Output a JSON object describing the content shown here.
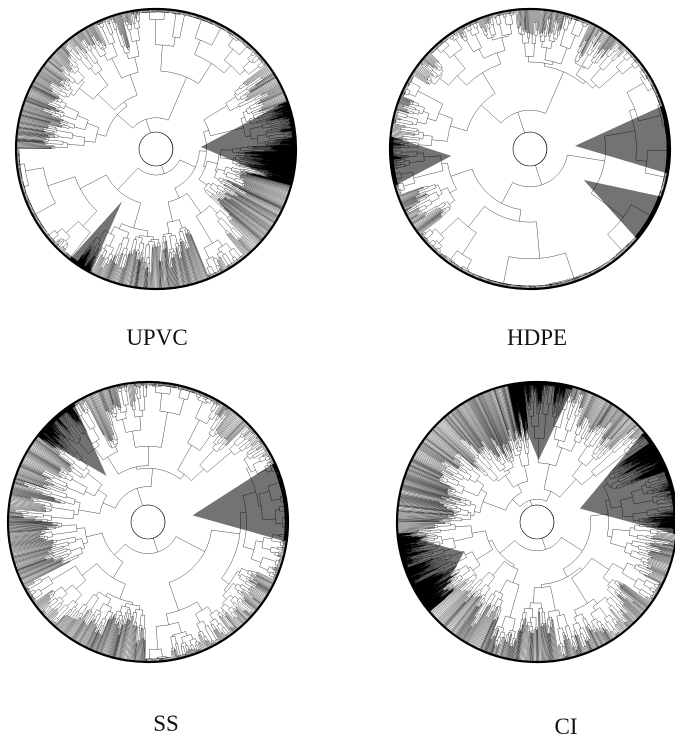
{
  "figure": {
    "panels": [
      {
        "id": "upvc",
        "label": "UPVC",
        "seed": 11,
        "dense_sectors": [
          [
            -20,
            15
          ],
          [
            118,
            128
          ]
        ]
      },
      {
        "id": "hdpe",
        "label": "HDPE",
        "seed": 23,
        "dense_sectors": [
          [
            -18,
            10
          ],
          [
            20,
            40
          ],
          [
            165,
            185
          ]
        ]
      },
      {
        "id": "ss",
        "label": "SS",
        "seed": 37,
        "dense_sectors": [
          [
            -25,
            8
          ],
          [
            218,
            238
          ]
        ]
      },
      {
        "id": "ci",
        "label": "CI",
        "seed": 53,
        "dense_sectors": [
          [
            -40,
            5
          ],
          [
            258,
            285
          ],
          [
            140,
            175
          ]
        ]
      }
    ],
    "colors": {
      "line": "#000000",
      "background": "#ffffff"
    }
  }
}
